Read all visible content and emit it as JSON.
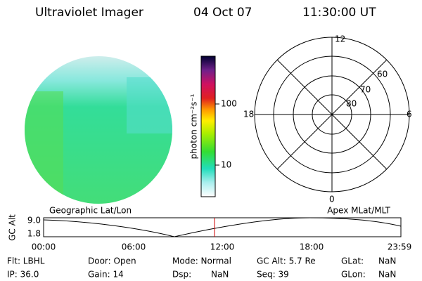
{
  "header": {
    "title": "Ultraviolet Imager",
    "date": "04 Oct 07",
    "time": "11:30:00 UT"
  },
  "colorbar": {
    "label": "photon cm⁻²s⁻¹",
    "ticks": [
      "100",
      "10"
    ]
  },
  "polar": {
    "top": "12",
    "left": "18",
    "right": "6",
    "bottom": "0",
    "rings": [
      "60",
      "70",
      "80"
    ]
  },
  "timeline": {
    "left_title": "Geographic Lat/Lon",
    "right_title": "Apex MLat/MLT",
    "ylabel": "GC Alt",
    "yticks": [
      "9.0",
      "1.8"
    ],
    "xticks": [
      "00:00",
      "06:00",
      "12:00",
      "18:00",
      "23:59"
    ]
  },
  "footer": {
    "rows": [
      [
        "Flt: LBHL",
        "Door: Open",
        "Mode: Normal",
        "GC Alt: 5.7 Re",
        "GLat:",
        "NaN"
      ],
      [
        "IP: 36.0",
        "Gain: 14",
        "Dsp:",
        "NaN",
        "Seq: 39",
        "GLon:",
        "NaN"
      ]
    ]
  }
}
